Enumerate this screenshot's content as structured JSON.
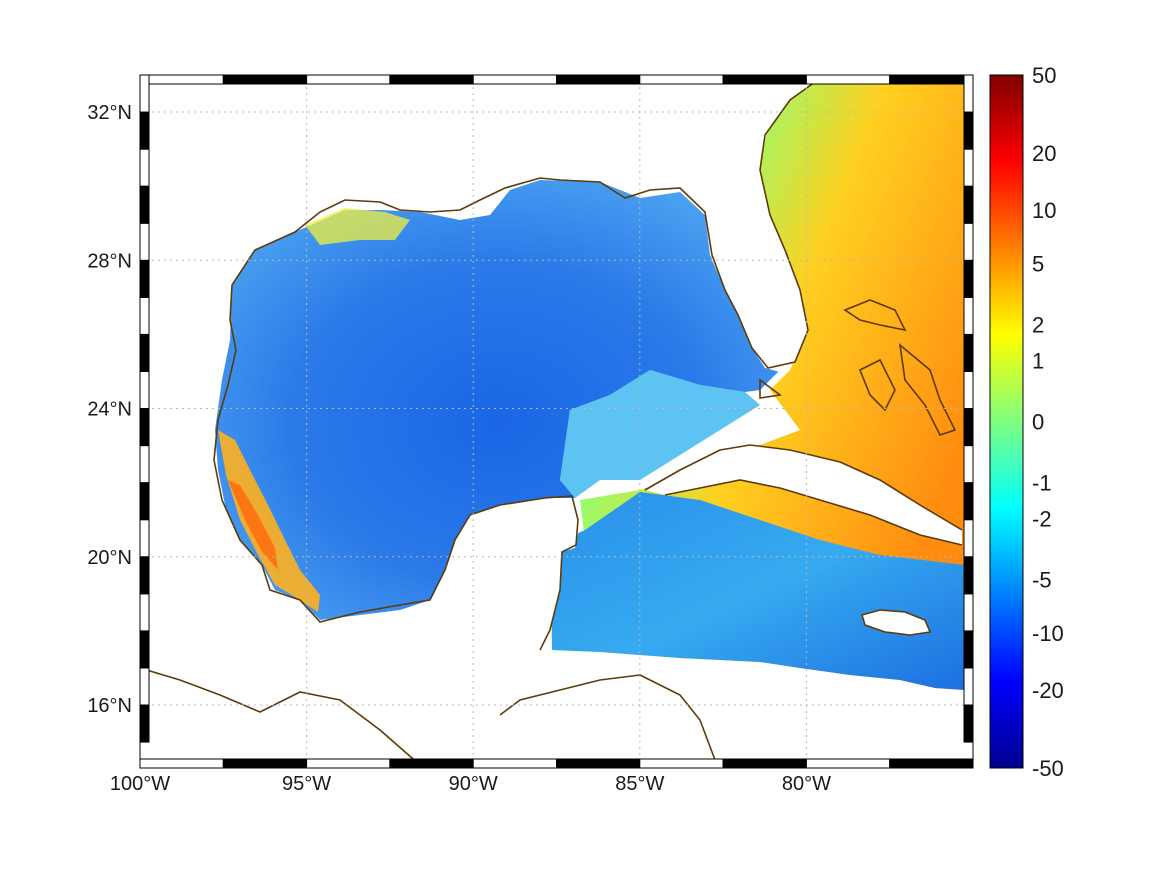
{
  "map": {
    "lon_range": [
      -100,
      -75
    ],
    "lat_range": [
      14.3,
      33
    ],
    "lon_ticks": [
      {
        "value": -100,
        "label": "100°W"
      },
      {
        "value": -95,
        "label": "95°W"
      },
      {
        "value": -90,
        "label": "90°W"
      },
      {
        "value": -85,
        "label": "85°W"
      },
      {
        "value": -80,
        "label": "80°W"
      }
    ],
    "lat_ticks": [
      {
        "value": 32,
        "label": "32°N"
      },
      {
        "value": 28,
        "label": "28°N"
      },
      {
        "value": 24,
        "label": "24°N"
      },
      {
        "value": 20,
        "label": "20°N"
      },
      {
        "value": 16,
        "label": "16°N"
      }
    ],
    "grid": "dotted",
    "frame": "black-white-alternating",
    "coastline_color": "#5e3a0b",
    "land_color": "#ffffff"
  },
  "colorbar": {
    "scale": "symmetric-log",
    "ticks": [
      "50",
      "20",
      "10",
      "5",
      "2",
      "1",
      "0",
      "-1",
      "-2",
      "-5",
      "-10",
      "-20",
      "-50"
    ],
    "colors": [
      "#7f0000",
      "#ff0000",
      "#ff8000",
      "#ffff00",
      "#80ff80",
      "#00ffff",
      "#0080ff",
      "#0000ff",
      "#00008f"
    ]
  }
}
